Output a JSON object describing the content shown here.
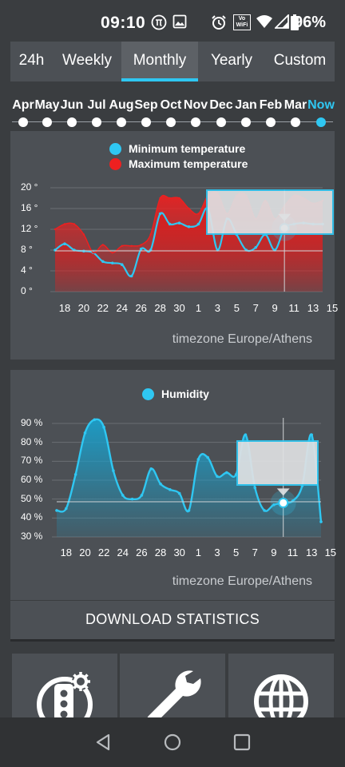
{
  "status_bar": {
    "time": "09:10",
    "battery_percent": "96%",
    "icons": [
      "pi-icon",
      "image-icon",
      "alarm-icon",
      "vowifi-icon",
      "wifi-icon",
      "signal-icon",
      "battery-icon"
    ],
    "vowifi_top": "Vo",
    "vowifi_bottom": "WiFi"
  },
  "tabs": [
    {
      "label": "24h",
      "active": false
    },
    {
      "label": "Weekly",
      "active": false
    },
    {
      "label": "Monthly",
      "active": true
    },
    {
      "label": "Yearly",
      "active": false
    },
    {
      "label": "Custom",
      "active": false
    }
  ],
  "months": [
    "Apr",
    "May",
    "Jun",
    "Jul",
    "Aug",
    "Sep",
    "Oct",
    "Nov",
    "Dec",
    "Jan",
    "Feb",
    "Mar",
    "Now"
  ],
  "selected_month": "Now",
  "accent_color": "#2fc7f2",
  "temperature_chart": {
    "legend": [
      {
        "label": "Minimum temperature",
        "color": "#2fc7f2"
      },
      {
        "label": "Maximum temperature",
        "color": "#ee2020"
      }
    ],
    "y_ticks": [
      "20 °",
      "16 °",
      "12 °",
      "8 °",
      "4 °",
      "0 °"
    ],
    "x_ticks": [
      "18",
      "20",
      "22",
      "24",
      "26",
      "28",
      "30",
      "1",
      "3",
      "5",
      "7",
      "9",
      "11",
      "13",
      "15"
    ],
    "timezone": "timezone Europe/Athens"
  },
  "humidity_chart": {
    "legend": [
      {
        "label": "Humidity",
        "color": "#2fc7f2"
      }
    ],
    "y_ticks": [
      "90 %",
      "80 %",
      "70 %",
      "60 %",
      "50 %",
      "40 %",
      "30 %"
    ],
    "x_ticks": [
      "18",
      "20",
      "22",
      "24",
      "26",
      "28",
      "30",
      "1",
      "3",
      "5",
      "7",
      "9",
      "11",
      "13",
      "15"
    ],
    "timezone": "timezone Europe/Athens"
  },
  "download_label": "DOWNLOAD STATISTICS",
  "bottom_tiles": [
    "traffic-light-settings-icon",
    "wrench-icon",
    "globe-icon"
  ],
  "nav_buttons": [
    "back-icon",
    "home-icon",
    "recents-icon"
  ],
  "chart_data": [
    {
      "type": "area",
      "title": "",
      "x": [
        "17",
        "18",
        "19",
        "20",
        "21",
        "22",
        "23",
        "24",
        "25",
        "26",
        "27",
        "28",
        "29",
        "30",
        "1",
        "2",
        "3",
        "4",
        "5",
        "6",
        "7",
        "8",
        "9",
        "10",
        "11",
        "12",
        "13",
        "14",
        "15"
      ],
      "series": [
        {
          "name": "Minimum temperature",
          "color": "#2fc7f2",
          "values": [
            8,
            9.2,
            8,
            7.8,
            7.5,
            5.8,
            5.5,
            5.2,
            3,
            8.2,
            8,
            15,
            13,
            13.2,
            12.5,
            13,
            16,
            8,
            14,
            11,
            8,
            8.5,
            11,
            8,
            12.2,
            13,
            13.2,
            13,
            13
          ]
        },
        {
          "name": "Maximum temperature",
          "color": "#ee2020",
          "values": [
            12,
            13,
            13,
            11,
            7.5,
            9,
            7.5,
            8.8,
            8.8,
            9,
            11,
            18,
            18,
            18,
            16,
            15,
            18.5,
            19,
            15,
            18.5,
            18.5,
            14,
            17.5,
            14,
            16.5,
            18.5,
            18,
            17,
            17.5
          ]
        }
      ],
      "ylim": [
        0,
        20
      ],
      "yticks": [
        0,
        4,
        8,
        12,
        16,
        20
      ],
      "grid": true,
      "legend_position": "top",
      "highlight_index": 24
    },
    {
      "type": "area",
      "title": "",
      "x": [
        "17",
        "18",
        "19",
        "20",
        "21",
        "22",
        "23",
        "24",
        "25",
        "26",
        "27",
        "28",
        "29",
        "30",
        "1",
        "2",
        "3",
        "4",
        "5",
        "6",
        "7",
        "8",
        "9",
        "10",
        "11",
        "12",
        "13",
        "14",
        "15"
      ],
      "series": [
        {
          "name": "Humidity",
          "color": "#2fc7f2",
          "values": [
            44,
            45,
            63,
            85,
            92,
            88,
            65,
            52,
            50,
            52,
            66,
            58,
            55,
            53,
            44,
            71,
            72,
            62,
            64,
            63,
            84,
            56,
            44,
            47,
            48,
            49,
            57,
            84,
            38
          ]
        }
      ],
      "ylim": [
        30,
        90
      ],
      "yticks": [
        30,
        40,
        50,
        60,
        70,
        80,
        90
      ],
      "grid": true,
      "legend_position": "top",
      "highlight_index": 24
    }
  ]
}
